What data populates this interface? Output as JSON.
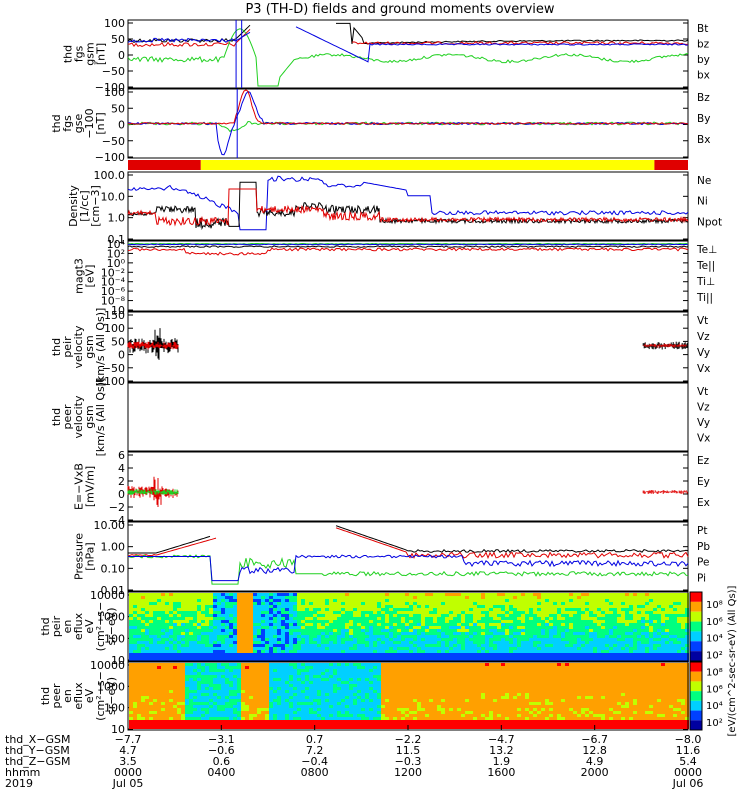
{
  "title": "P3 (TH-D) fields and ground moments overview",
  "colors": {
    "black": "#000000",
    "red": "#e00000",
    "green": "#20d020",
    "blue": "#0000e0",
    "yellow": "#ffff00"
  },
  "chart_data": [
    {
      "type": "line",
      "panel": "fgs",
      "ylabel": [
        "thd",
        "fgs",
        "gsm",
        "[nT]"
      ],
      "yticks": [
        "100",
        "50",
        "0",
        "−50",
        "−100"
      ],
      "ylim": [
        -100,
        100
      ],
      "legend": [
        {
          "label": "Bt",
          "color": "black"
        },
        {
          "label": "bz",
          "color": "red"
        },
        {
          "label": "by",
          "color": "green"
        },
        {
          "label": "bx",
          "color": "blue"
        }
      ]
    },
    {
      "type": "line",
      "panel": "fgs-gse",
      "ylabel": [
        "thd",
        "fgs",
        "gse",
        "−100",
        "[nT]"
      ],
      "yticks": [
        "100",
        "50",
        "0",
        "−50",
        "−100"
      ],
      "ylim": [
        -120,
        120
      ],
      "legend": [
        {
          "label": "Bz",
          "color": "red"
        },
        {
          "label": "By",
          "color": "green"
        },
        {
          "label": "Bx",
          "color": "blue"
        }
      ]
    },
    {
      "type": "bar",
      "panel": "mode-bar",
      "segments": [
        {
          "from": 0,
          "to": 0.13,
          "color": "red"
        },
        {
          "from": 0.13,
          "to": 0.94,
          "color": "yellow"
        },
        {
          "from": 0.94,
          "to": 1,
          "color": "red"
        }
      ]
    },
    {
      "type": "line",
      "panel": "density",
      "ylabel": [
        "Density",
        "[1/cc]",
        "[cm−3]"
      ],
      "yticks": [
        "100.0",
        "10.0",
        "1.0",
        "0.1"
      ],
      "scale": "log",
      "legend": [
        {
          "label": "Ne",
          "color": "red"
        },
        {
          "label": "Ni",
          "color": "black"
        },
        {
          "label": "Npot",
          "color": "blue"
        }
      ]
    },
    {
      "type": "line",
      "panel": "temperature",
      "ylabel": [
        "magt3",
        "[eV]"
      ],
      "yticks": [
        "10⁴",
        "10²",
        "10⁰",
        "10⁻²",
        "10⁻⁴",
        "10⁻⁶",
        "10⁻⁸",
        "10"
      ],
      "scale": "log",
      "legend": [
        {
          "label": "Te⊥",
          "color": "red"
        },
        {
          "label": "Te||",
          "color": "black"
        },
        {
          "label": "Ti⊥",
          "color": "blue"
        },
        {
          "label": "Ti||",
          "color": "green"
        }
      ]
    },
    {
      "type": "line",
      "panel": "peir-velocity",
      "ylabel": [
        "thd",
        "peir",
        "velocity",
        "gsm",
        "[km/s (All Qs)]"
      ],
      "yticks": [
        "150",
        "100",
        "50",
        "0",
        "−50",
        "−100"
      ],
      "ylim": [
        -100,
        150
      ],
      "legend": [
        {
          "label": "Vt",
          "color": "black"
        },
        {
          "label": "Vz",
          "color": "red"
        },
        {
          "label": "Vy",
          "color": "green"
        },
        {
          "label": "Vx",
          "color": "blue"
        }
      ]
    },
    {
      "type": "line",
      "panel": "peer-velocity",
      "ylabel": [
        "thd",
        "peer",
        "velocity",
        "gsm",
        "[km/s (All Qs)]"
      ],
      "yticks": [],
      "legend": [
        {
          "label": "Vt",
          "color": "black"
        },
        {
          "label": "Vz",
          "color": "red"
        },
        {
          "label": "Vy",
          "color": "green"
        },
        {
          "label": "Vx",
          "color": "blue"
        }
      ]
    },
    {
      "type": "line",
      "panel": "efield",
      "ylabel": [
        "E=−VxB",
        "[mV/m]"
      ],
      "yticks": [
        "6",
        "4",
        "2",
        "0",
        "−2",
        "−4"
      ],
      "ylim": [
        -4,
        6
      ],
      "legend": [
        {
          "label": "Ez",
          "color": "red"
        },
        {
          "label": "Ey",
          "color": "green"
        },
        {
          "label": "Ex",
          "color": "blue"
        }
      ]
    },
    {
      "type": "line",
      "panel": "pressure",
      "ylabel": [
        "Pressure",
        "[nPa]"
      ],
      "yticks": [
        "10.00",
        "1.00",
        "0.10",
        "0.01"
      ],
      "scale": "log",
      "legend": [
        {
          "label": "Pt",
          "color": "black"
        },
        {
          "label": "Pb",
          "color": "red"
        },
        {
          "label": "Pe",
          "color": "green"
        },
        {
          "label": "Pi",
          "color": "blue"
        }
      ]
    },
    {
      "type": "heatmap",
      "panel": "peir-spectrogram",
      "ylabel": [
        "thd",
        "peir",
        "en",
        "eflux",
        "eV",
        "(cm²−s−",
        "sr−eV)"
      ],
      "yticks": [
        "10000",
        "1000",
        "100",
        "10"
      ],
      "scale": "log"
    },
    {
      "type": "heatmap",
      "panel": "peer-spectrogram",
      "ylabel": [
        "thd",
        "peer",
        "en",
        "eflux",
        "eV",
        "(cm²−s−",
        "sr−eV)"
      ],
      "yticks": [
        "10000",
        "1000",
        "100",
        "10"
      ],
      "scale": "log"
    }
  ],
  "colorbar": {
    "ticks": [
      "10⁸",
      "10⁶",
      "10⁴",
      "10²",
      "10⁸",
      "10⁶",
      "10⁴",
      "10²"
    ],
    "label": "[eV/(cm^2-sec-sr-eV)]",
    "label2": "[eV/(cm^2-sec-sr-eV) (All Qs)]"
  },
  "xaxis": {
    "rows": [
      {
        "label": "thd_X−GSM",
        "values": [
          "−7.7",
          "−3.1",
          "0.7",
          "−2.2",
          "−4.7",
          "−6.7",
          "−8.0"
        ]
      },
      {
        "label": "thd_Y−GSM",
        "values": [
          "4.7",
          "−0.6",
          "7.2",
          "11.5",
          "13.2",
          "12.8",
          "11.6"
        ]
      },
      {
        "label": "thd_Z−GSM",
        "values": [
          "3.5",
          "0.6",
          "−0.4",
          "−0.3",
          "1.9",
          "4.9",
          "5.4"
        ]
      },
      {
        "label": "hhmm",
        "values": [
          "0000",
          "0400",
          "0800",
          "1200",
          "1600",
          "2000",
          "0000"
        ]
      },
      {
        "label": "2019",
        "values": [
          "Jul 05",
          "",
          "",
          "",
          "",
          "",
          "Jul 06"
        ]
      }
    ]
  }
}
